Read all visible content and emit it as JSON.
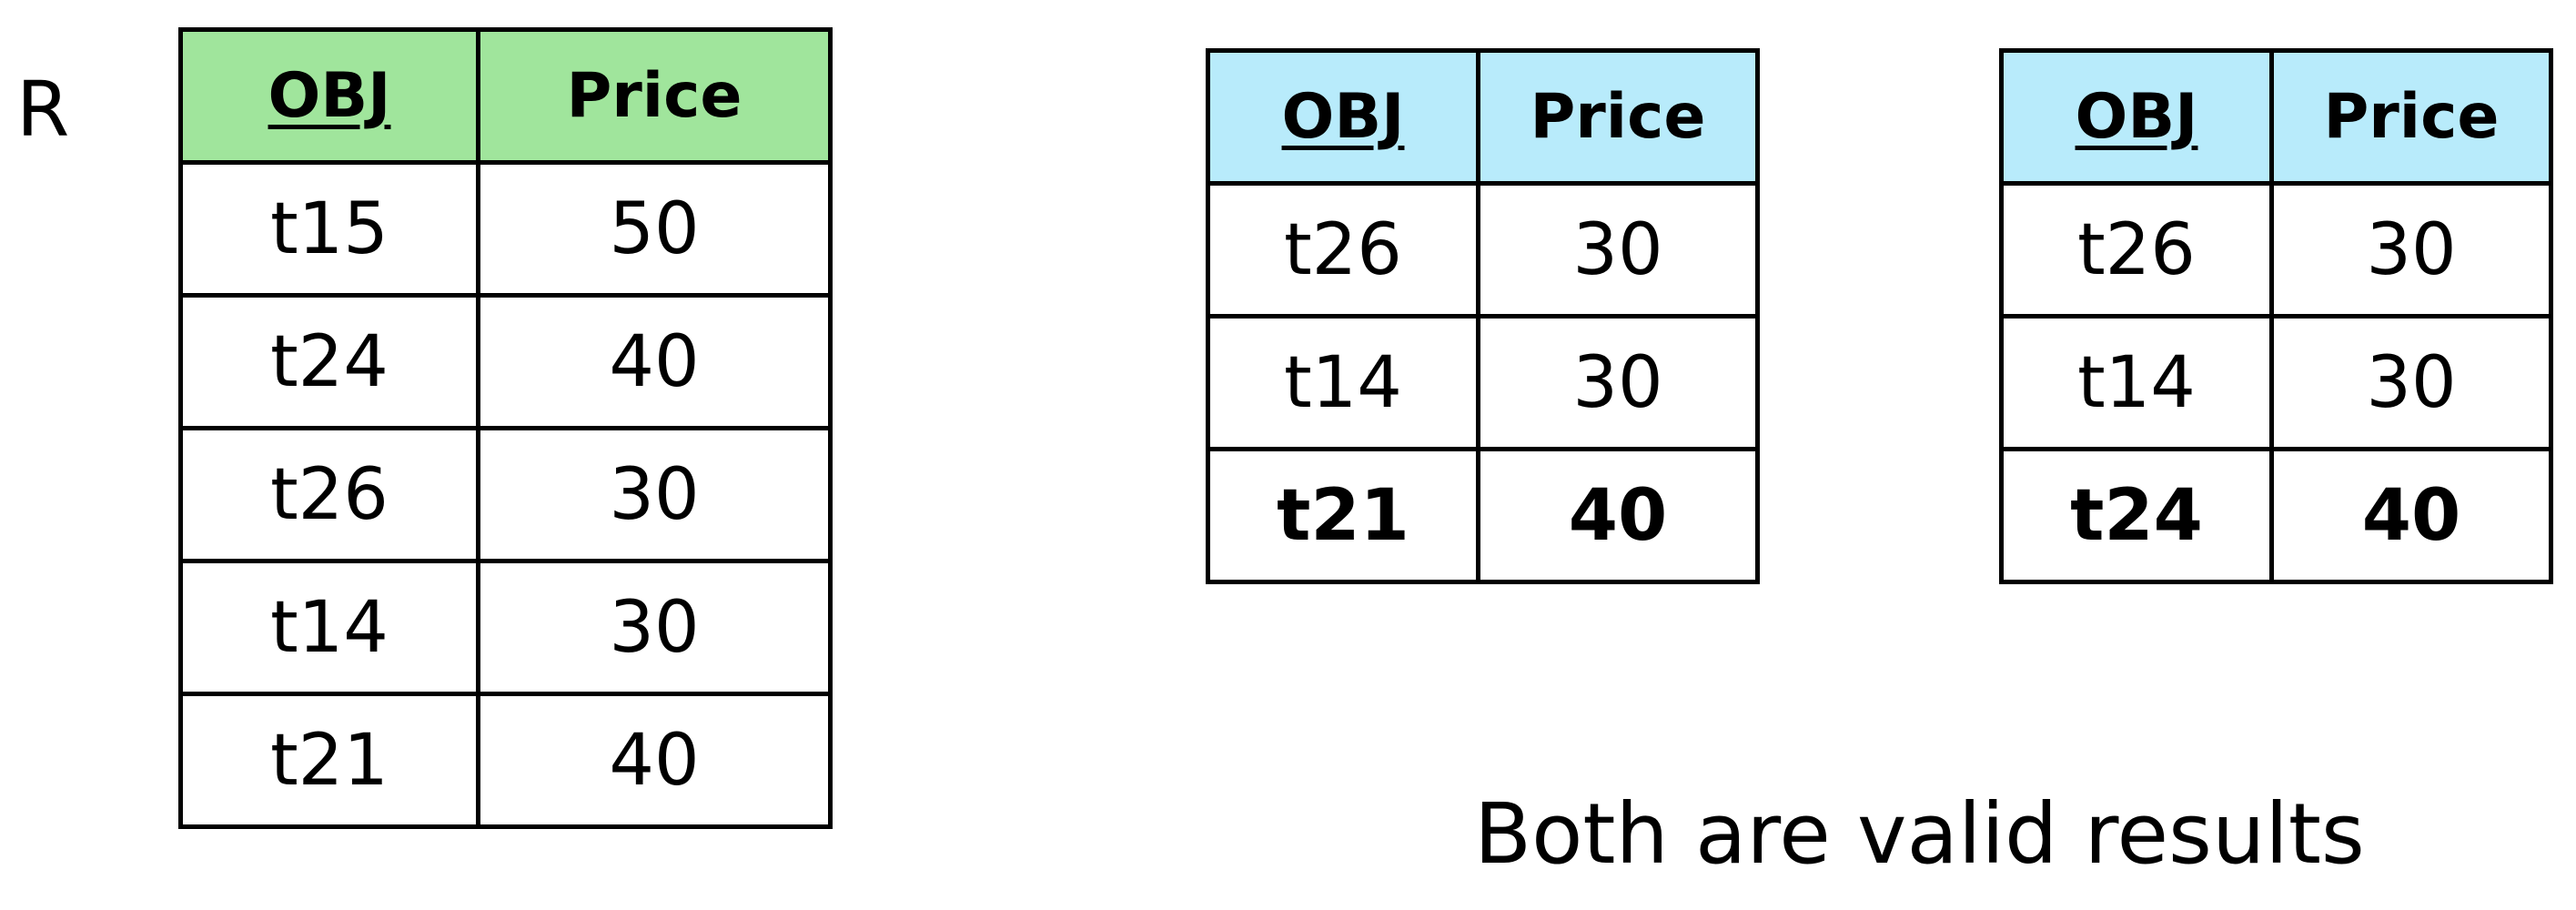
{
  "relation_label": "R",
  "colors": {
    "r_header_bg": "#a0e59c",
    "result_header_bg": "#b8ebfb",
    "border": "#000000"
  },
  "table_r": {
    "headers": [
      "OBJ",
      "Price"
    ],
    "rows": [
      [
        "t15",
        "50"
      ],
      [
        "t24",
        "40"
      ],
      [
        "t26",
        "30"
      ],
      [
        "t14",
        "30"
      ],
      [
        "t21",
        "40"
      ]
    ]
  },
  "result_1": {
    "headers": [
      "OBJ",
      "Price"
    ],
    "rows": [
      [
        "t26",
        "30"
      ],
      [
        "t14",
        "30"
      ],
      [
        "t21",
        "40"
      ]
    ]
  },
  "result_2": {
    "headers": [
      "OBJ",
      "Price"
    ],
    "rows": [
      [
        "t26",
        "30"
      ],
      [
        "t14",
        "30"
      ],
      [
        "t24",
        "40"
      ]
    ]
  },
  "caption": "Both are valid results"
}
